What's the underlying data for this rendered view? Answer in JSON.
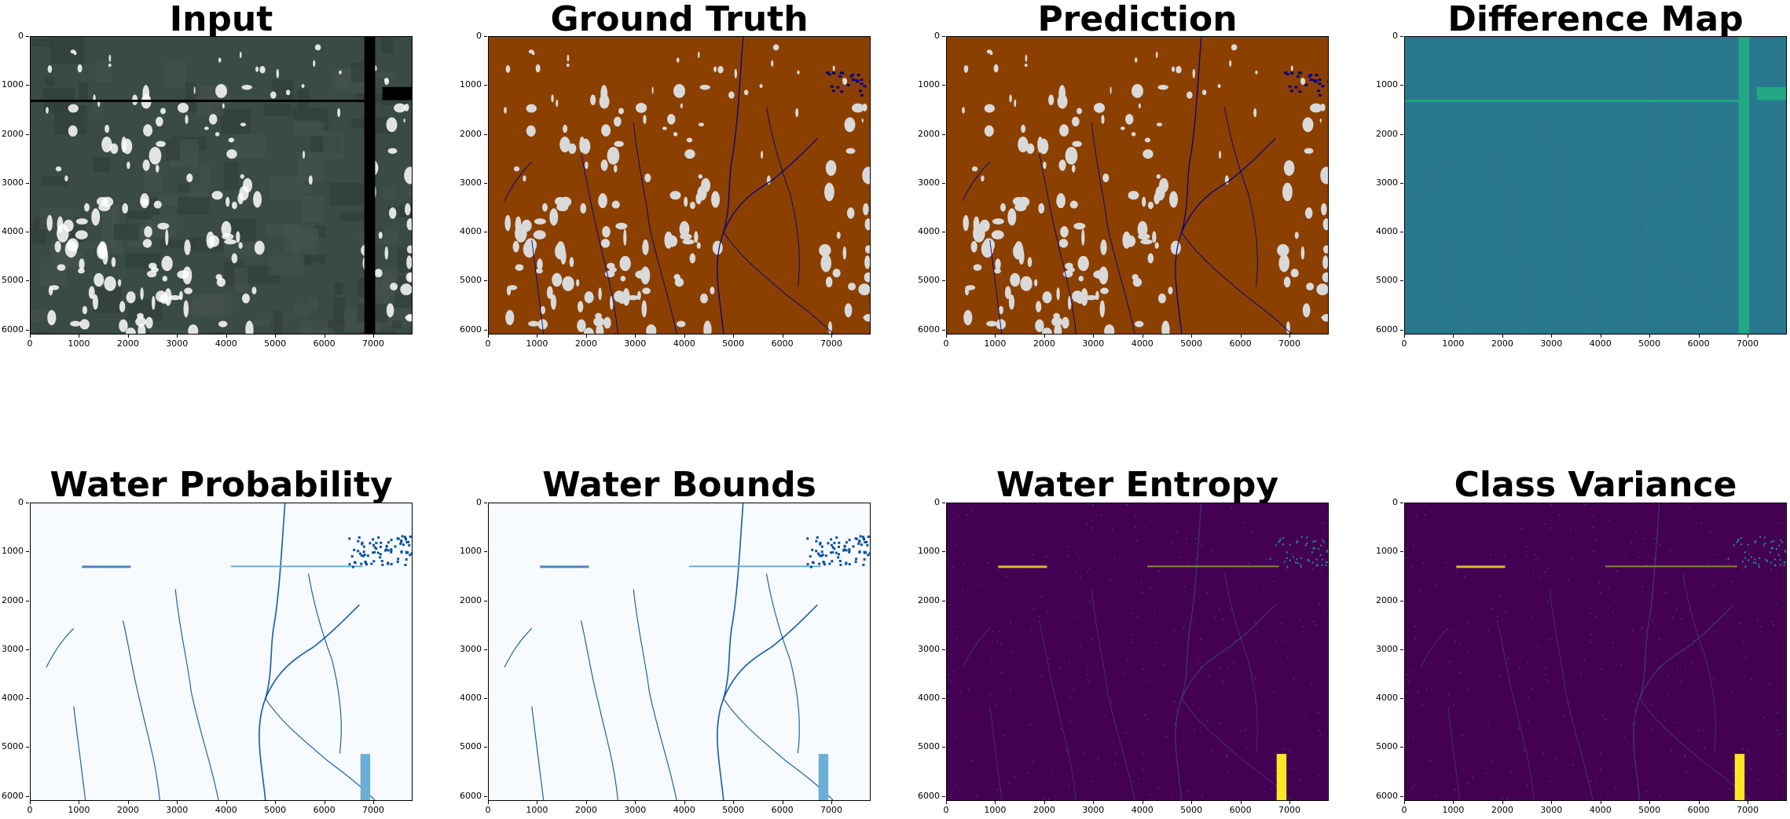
{
  "panels": [
    {
      "title": "Input",
      "style": "satellite-rgb"
    },
    {
      "title": "Ground Truth",
      "style": "classified-brown"
    },
    {
      "title": "Prediction",
      "style": "classified-brown"
    },
    {
      "title": "Difference Map",
      "style": "viridis-diff"
    },
    {
      "title": "Water Probability",
      "style": "blues"
    },
    {
      "title": "Water Bounds",
      "style": "blues"
    },
    {
      "title": "Water Entropy",
      "style": "viridis-dark"
    },
    {
      "title": "Class Variance",
      "style": "viridis-dark"
    }
  ],
  "axes": {
    "x_ticks": [
      "0",
      "1000",
      "2000",
      "3000",
      "4000",
      "5000",
      "6000",
      "7000"
    ],
    "y_ticks": [
      "0",
      "1000",
      "2000",
      "3000",
      "4000",
      "5000",
      "6000"
    ],
    "x_range": [
      0,
      7800
    ],
    "y_range": [
      0,
      6100
    ]
  },
  "colors": {
    "land_brown": "#8b4000",
    "cloud_gray": "#d9d9d9",
    "water_navy": "#00008b",
    "diff_teal": "#2a788e",
    "diff_green": "#22a884",
    "blues_bg": "#f7fbff",
    "blues_dark": "#08519c",
    "blues_mid": "#6baed6",
    "viridis_purple": "#440154",
    "viridis_yellow": "#fde725",
    "satellite_green": "#3a4a44"
  }
}
